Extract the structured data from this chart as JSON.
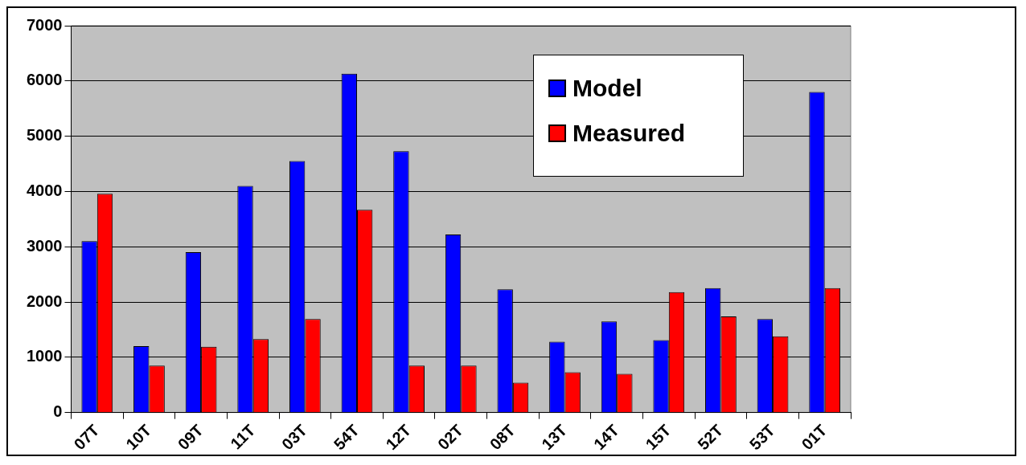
{
  "chart_data": {
    "type": "bar",
    "categories": [
      "07T",
      "10T",
      "09T",
      "11T",
      "03T",
      "54T",
      "12T",
      "02T",
      "08T",
      "13T",
      "14T",
      "15T",
      "52T",
      "53T",
      "01T"
    ],
    "series": [
      {
        "name": "Model",
        "color": "#0000ff",
        "values": [
          3100,
          1200,
          2900,
          4100,
          4550,
          6130,
          4730,
          3220,
          2230,
          1280,
          1650,
          1310,
          2250,
          1690,
          5800
        ]
      },
      {
        "name": "Measured",
        "color": "#ff0000",
        "values": [
          3960,
          850,
          1190,
          1330,
          1690,
          3670,
          850,
          850,
          540,
          730,
          700,
          2180,
          1740,
          1380,
          2250
        ]
      }
    ],
    "ylim": [
      0,
      7000
    ],
    "yticks": [
      0,
      1000,
      2000,
      3000,
      4000,
      5000,
      6000,
      7000
    ],
    "grid": "y",
    "legend": "top right"
  }
}
